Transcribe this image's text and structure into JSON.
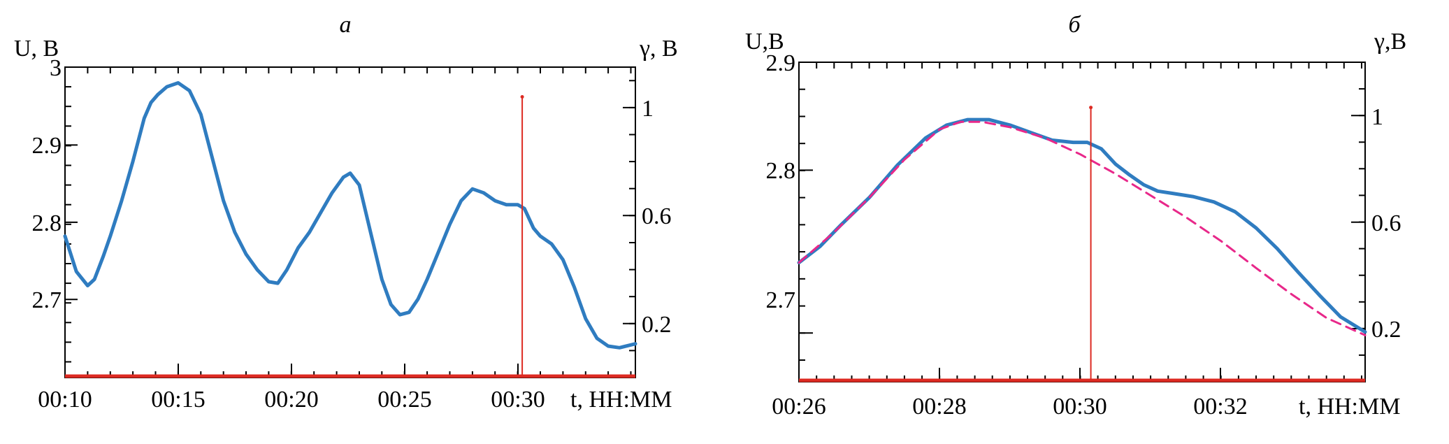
{
  "chart_data": [
    {
      "type": "line",
      "title": "а",
      "ylabel": "U, В",
      "ylabel_right": "γ, В",
      "xlabel": "t, НН:ММ",
      "xlim_min": [
        10,
        35.2
      ],
      "ylim": [
        2.605,
        3.0
      ],
      "ylim_right": [
        0.0,
        1.15
      ],
      "x_ticks": [
        10,
        15,
        20,
        25,
        30
      ],
      "x_tick_labels": [
        "00:10",
        "00:15",
        "00:20",
        "00:25",
        "00:30"
      ],
      "y_ticks": [
        2.7,
        2.8,
        2.9,
        3.0
      ],
      "y_tick_labels": [
        "2.7",
        "2.8",
        "2.9",
        "3"
      ],
      "y_ticks_right": [
        0.2,
        0.6,
        1.0
      ],
      "y_tick_labels_right": [
        "0.2",
        "0.6",
        "1"
      ],
      "series": [
        {
          "color": "#2f7cc0",
          "axis": "left",
          "x": [
            10.0,
            10.5,
            11.0,
            11.3,
            11.7,
            12.0,
            12.5,
            13.0,
            13.5,
            13.8,
            14.1,
            14.5,
            15.0,
            15.5,
            16.0,
            16.5,
            17.0,
            17.5,
            18.0,
            18.5,
            19.0,
            19.4,
            19.8,
            20.3,
            20.8,
            21.3,
            21.8,
            22.3,
            22.6,
            23.0,
            23.5,
            24.0,
            24.4,
            24.8,
            25.2,
            25.6,
            26.0,
            26.5,
            27.0,
            27.5,
            28.0,
            28.5,
            29.0,
            29.5,
            30.0,
            30.3,
            30.7,
            31.0,
            31.5,
            32.0,
            32.5,
            33.0,
            33.5,
            34.0,
            34.5,
            35.2
          ],
          "y": [
            2.785,
            2.74,
            2.722,
            2.73,
            2.76,
            2.785,
            2.83,
            2.88,
            2.935,
            2.955,
            2.965,
            2.975,
            2.98,
            2.97,
            2.94,
            2.885,
            2.83,
            2.79,
            2.762,
            2.742,
            2.727,
            2.725,
            2.742,
            2.77,
            2.79,
            2.815,
            2.84,
            2.86,
            2.865,
            2.85,
            2.79,
            2.73,
            2.698,
            2.685,
            2.688,
            2.705,
            2.73,
            2.765,
            2.8,
            2.83,
            2.845,
            2.84,
            2.83,
            2.825,
            2.825,
            2.82,
            2.795,
            2.785,
            2.775,
            2.755,
            2.72,
            2.68,
            2.655,
            2.645,
            2.643,
            2.648
          ]
        },
        {
          "color": "#dd2a22",
          "axis": "right",
          "baseline": 0.0,
          "spike_x": 30.2,
          "spike_value": 1.04
        }
      ]
    },
    {
      "type": "line",
      "title": "б",
      "ylabel": "U,В",
      "ylabel_right": "γ,В",
      "xlabel": "t, НН:ММ",
      "xlim_min": [
        26,
        34.05
      ],
      "ylim": [
        2.605,
        2.9
      ],
      "ylim_right": [
        0.0,
        1.2
      ],
      "x_ticks": [
        26,
        28,
        30,
        32
      ],
      "x_tick_labels": [
        "00:26",
        "00:28",
        "00:30",
        "00:32"
      ],
      "y_ticks": [
        2.7,
        2.8,
        2.9
      ],
      "y_tick_labels": [
        "2.7",
        "2.8",
        "2.9"
      ],
      "y_ticks_right": [
        0.2,
        0.6,
        1.0
      ],
      "y_tick_labels_right": [
        "0.2",
        "0.6",
        "1"
      ],
      "series": [
        {
          "color": "#2f7cc0",
          "axis": "left",
          "x": [
            26.0,
            26.3,
            26.6,
            27.0,
            27.4,
            27.8,
            28.1,
            28.4,
            28.7,
            29.0,
            29.3,
            29.6,
            29.9,
            30.1,
            30.3,
            30.5,
            30.7,
            30.9,
            31.1,
            31.3,
            31.6,
            31.9,
            32.2,
            32.5,
            32.8,
            33.1,
            33.4,
            33.7,
            34.05
          ],
          "y": [
            2.715,
            2.73,
            2.75,
            2.775,
            2.805,
            2.83,
            2.842,
            2.847,
            2.847,
            2.842,
            2.835,
            2.828,
            2.826,
            2.826,
            2.82,
            2.806,
            2.796,
            2.787,
            2.781,
            2.779,
            2.776,
            2.771,
            2.762,
            2.747,
            2.728,
            2.706,
            2.685,
            2.665,
            2.651
          ]
        },
        {
          "color": "#e8288a",
          "axis": "left",
          "style": "dashed",
          "x": [
            26.0,
            26.5,
            27.0,
            27.5,
            28.0,
            28.3,
            28.6,
            29.0,
            29.5,
            30.0,
            30.5,
            31.0,
            31.5,
            32.0,
            32.5,
            33.0,
            33.5,
            34.05
          ],
          "y": [
            2.715,
            2.743,
            2.775,
            2.81,
            2.838,
            2.845,
            2.845,
            2.84,
            2.83,
            2.815,
            2.797,
            2.777,
            2.757,
            2.735,
            2.71,
            2.686,
            2.664,
            2.648
          ]
        },
        {
          "color": "#dd2a22",
          "axis": "right",
          "baseline": 0.0,
          "spike_x": 30.15,
          "spike_value": 1.03
        }
      ]
    }
  ]
}
